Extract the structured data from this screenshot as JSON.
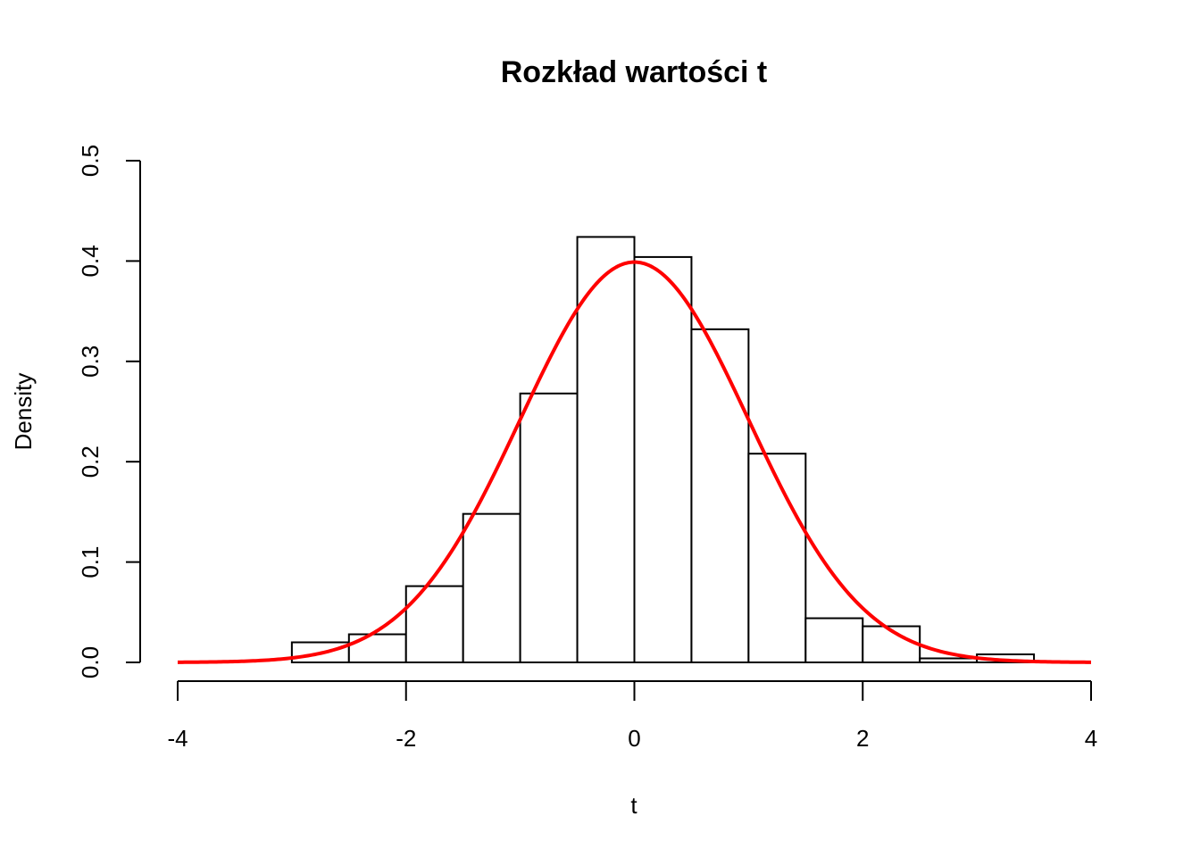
{
  "chart_data": {
    "type": "bar",
    "title": "Rozkład wartości t",
    "xlabel": "t",
    "ylabel": "Density",
    "xlim": [
      -4,
      4
    ],
    "ylim": [
      0,
      0.5
    ],
    "x_ticks": [
      "-4",
      "-2",
      "0",
      "2",
      "4"
    ],
    "y_ticks": [
      "0.0",
      "0.1",
      "0.2",
      "0.3",
      "0.4",
      "0.5"
    ],
    "grid": false,
    "histogram": {
      "bin_edges": [
        -3.0,
        -2.5,
        -2.0,
        -1.5,
        -1.0,
        -0.5,
        0.0,
        0.5,
        1.0,
        1.5,
        2.0,
        2.5,
        3.0,
        3.5
      ],
      "density": [
        0.02,
        0.028,
        0.076,
        0.148,
        0.268,
        0.424,
        0.404,
        0.332,
        0.208,
        0.044,
        0.036,
        0.004,
        0.008
      ]
    },
    "curve": {
      "type": "line",
      "description_of_values": "standard normal density",
      "x_range": [
        -4,
        4
      ],
      "color": "#ff0000"
    },
    "bar_fill": "#ffffff",
    "bar_stroke": "#000000"
  }
}
